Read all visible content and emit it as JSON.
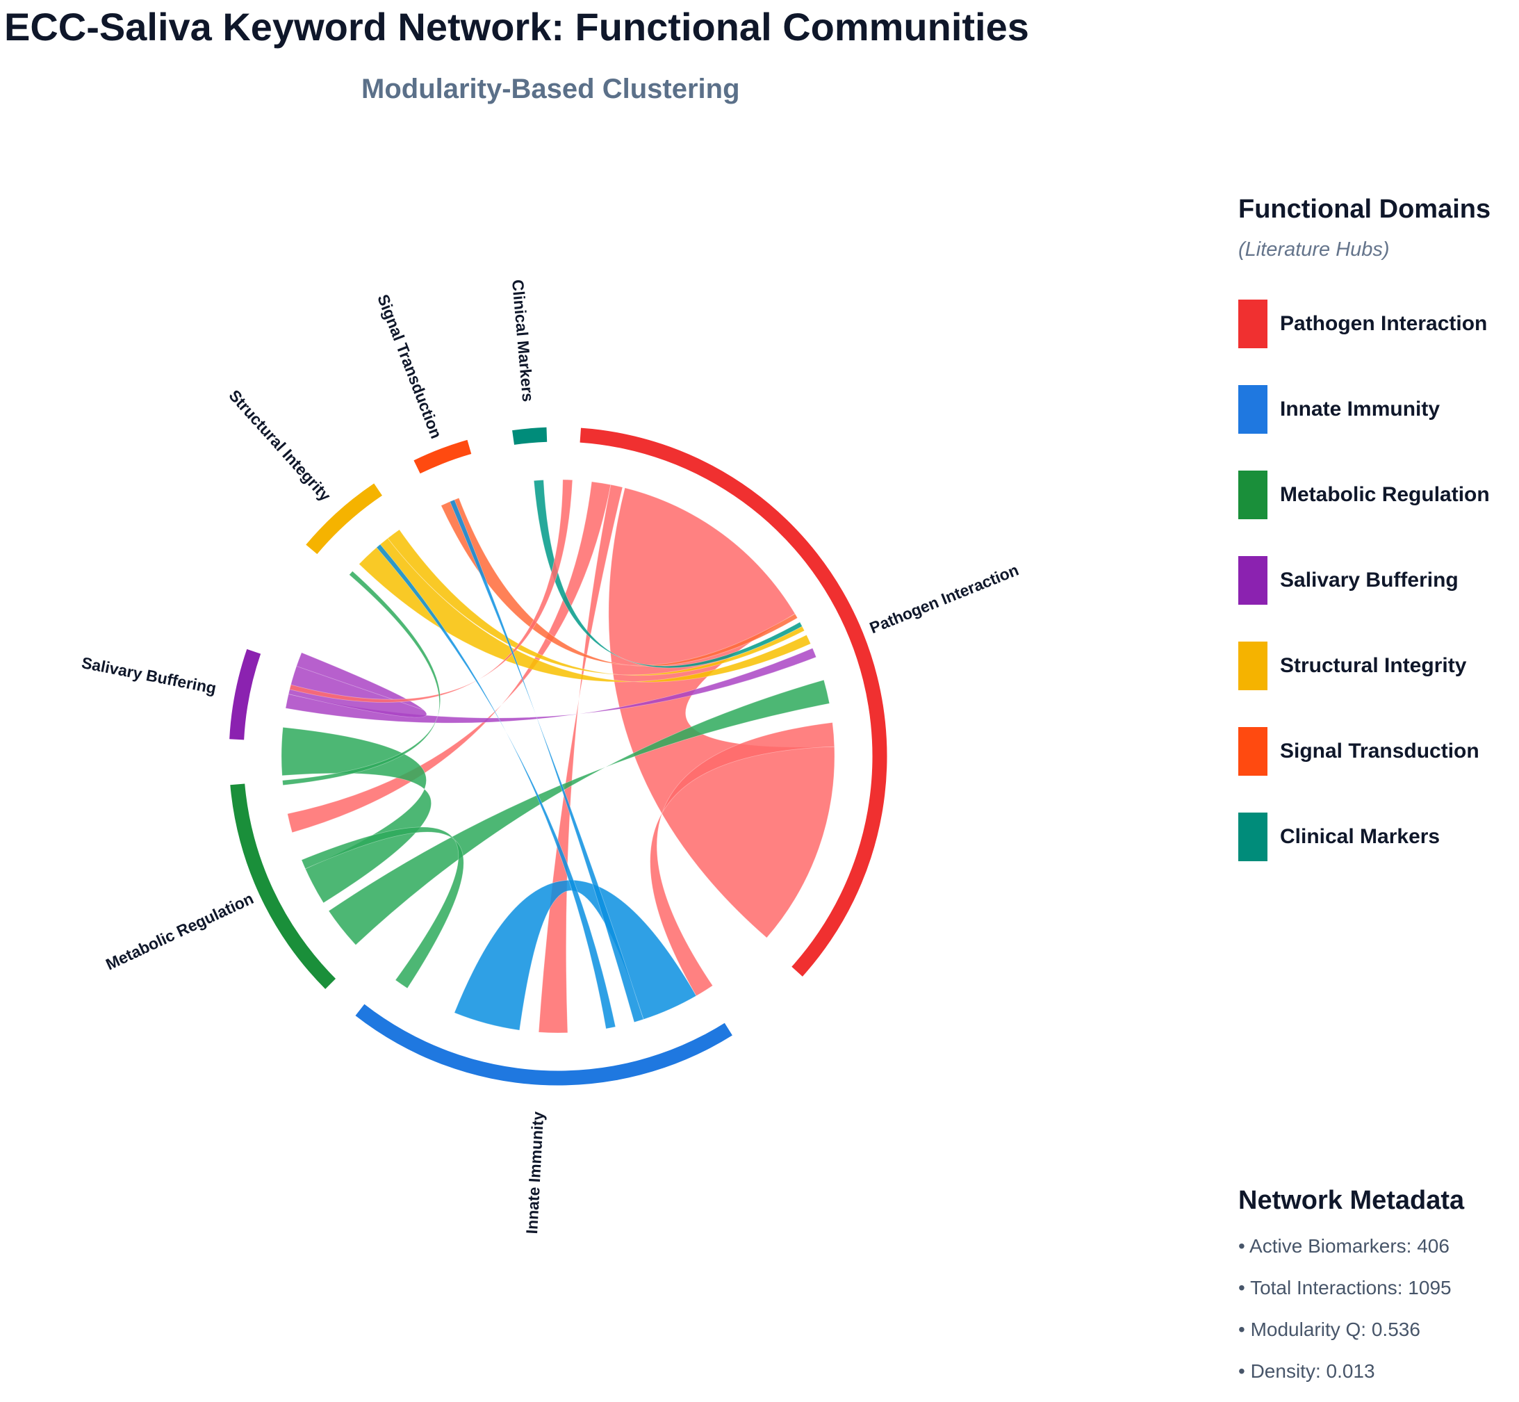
{
  "chart_data": {
    "type": "chord",
    "title": "ECC-Saliva Keyword Network: Functional Communities",
    "subtitle": "Modularity-Based Clustering",
    "groups": [
      {
        "name": "Pathogen Interaction",
        "color": "#f03030",
        "ribbon_color": "#ff6b6b",
        "start_deg": 4,
        "end_deg": 132
      },
      {
        "name": "Innate Immunity",
        "color": "#1f78e0",
        "ribbon_color": "#0a8fe0",
        "start_deg": 148,
        "end_deg": 218
      },
      {
        "name": "Metabolic Regulation",
        "color": "#1a8f3a",
        "ribbon_color": "#2eaa5c",
        "start_deg": 225,
        "end_deg": 265
      },
      {
        "name": "Salivary Buffering",
        "color": "#8b22b0",
        "ribbon_color": "#aa44c4",
        "start_deg": 273,
        "end_deg": 289
      },
      {
        "name": "Structural Integrity",
        "color": "#f5b300",
        "ribbon_color": "#f8c000",
        "start_deg": 310,
        "end_deg": 326
      },
      {
        "name": "Signal Transduction",
        "color": "#ff4a10",
        "ribbon_color": "#ff6b3a",
        "start_deg": 334,
        "end_deg": 344
      },
      {
        "name": "Clinical Markers",
        "color": "#008c7a",
        "ribbon_color": "#009a88",
        "start_deg": 352,
        "end_deg": 358
      }
    ],
    "links": [
      {
        "source": "Pathogen Interaction",
        "target": "Pathogen Interaction",
        "s0": 14,
        "s1": 59,
        "t0": 88,
        "t1": 131
      },
      {
        "source": "Pathogen Interaction",
        "target": "Metabolic Regulation",
        "s0": 7,
        "s1": 11,
        "t0": 258,
        "t1": 254
      },
      {
        "source": "Pathogen Interaction",
        "target": "Innate Immunity",
        "s0": 11,
        "s1": 13.5,
        "t0": 184,
        "t1": 178
      },
      {
        "source": "Innate Immunity",
        "target": "Innate Immunity",
        "s0": 150,
        "s1": 162,
        "t0": 188,
        "t1": 202
      },
      {
        "source": "Pathogen Interaction",
        "target": "Innate Immunity",
        "s0": 83,
        "s1": 88,
        "t0": 150,
        "t1": 146
      },
      {
        "source": "Metabolic Regulation",
        "target": "Pathogen Interaction",
        "s0": 227,
        "s1": 236,
        "t0": 79,
        "t1": 74
      },
      {
        "source": "Metabolic Regulation",
        "target": "Metabolic Regulation",
        "s0": 238,
        "s1": 246,
        "t0": 276,
        "t1": 266
      },
      {
        "source": "Metabolic Regulation",
        "target": "Innate Immunity",
        "s0": 213,
        "s1": 216,
        "t0": 248,
        "t1": 246
      },
      {
        "source": "Salivary Buffering",
        "target": "Pathogen Interaction",
        "s0": 280,
        "s1": 283,
        "t0": 69,
        "t1": 67
      },
      {
        "source": "Salivary Buffering",
        "target": "Salivary Buffering",
        "s0": 283,
        "s1": 289,
        "t0": 289,
        "t1": 292
      },
      {
        "source": "Structural Integrity",
        "target": "Pathogen Interaction",
        "s0": 314,
        "s1": 322,
        "t0": 66,
        "t1": 64
      },
      {
        "source": "Structural Integrity",
        "target": "Pathogen Interaction",
        "s0": 322,
        "s1": 325,
        "t0": 63,
        "t1": 62
      },
      {
        "source": "Signal Transduction",
        "target": "Pathogen Interaction",
        "s0": 335,
        "s1": 339,
        "t0": 60,
        "t1": 59
      },
      {
        "source": "Clinical Markers",
        "target": "Pathogen Interaction",
        "s0": 355,
        "s1": 357,
        "t0": 62,
        "t1": 61
      },
      {
        "source": "Pathogen Interaction",
        "target": "Salivary Buffering",
        "s0": 1,
        "s1": 3,
        "t0": 285,
        "t1": 284
      },
      {
        "source": "Innate Immunity",
        "target": "Structural Integrity",
        "s0": 168,
        "s1": 170,
        "t0": 320,
        "t1": 319
      },
      {
        "source": "Innate Immunity",
        "target": "Signal Transduction",
        "s0": 162,
        "s1": 164,
        "t0": 338,
        "t1": 337
      },
      {
        "source": "Metabolic Regulation",
        "target": "Structural Integrity",
        "s0": 264,
        "s1": 265,
        "t0": 312,
        "t1": 311
      }
    ]
  },
  "legend": {
    "title": "Functional Domains",
    "subtitle": "(Literature Hubs)",
    "items": [
      {
        "label": "Pathogen Interaction",
        "color": "#f03030"
      },
      {
        "label": "Innate Immunity",
        "color": "#1f78e0"
      },
      {
        "label": "Metabolic Regulation",
        "color": "#1a8f3a"
      },
      {
        "label": "Salivary Buffering",
        "color": "#8b22b0"
      },
      {
        "label": "Structural Integrity",
        "color": "#f5b300"
      },
      {
        "label": "Signal Transduction",
        "color": "#ff4a10"
      },
      {
        "label": "Clinical Markers",
        "color": "#008c7a"
      }
    ]
  },
  "metadata": {
    "title": "Network Metadata",
    "lines": [
      "• Active Biomarkers: 406",
      "• Total Interactions: 1095",
      "• Modularity Q: 0.536",
      "• Density: 0.013"
    ]
  }
}
